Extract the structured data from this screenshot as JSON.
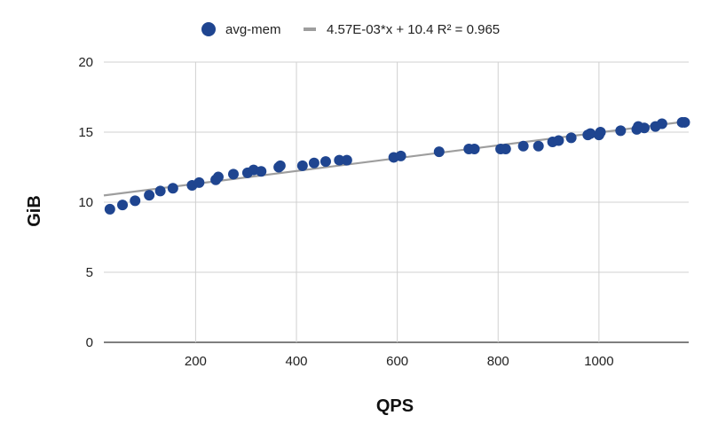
{
  "chart_data": {
    "type": "scatter",
    "title": "",
    "xlabel": "QPS",
    "ylabel": "GiB",
    "xlim": [
      18,
      1178
    ],
    "ylim": [
      0,
      20
    ],
    "x_ticks": [
      200,
      400,
      600,
      800,
      1000
    ],
    "y_ticks": [
      0,
      5,
      10,
      15,
      20
    ],
    "grid": true,
    "legend_position": "top",
    "series": [
      {
        "name": "avg-mem",
        "color": "#1f4590",
        "points": [
          [
            30,
            9.5
          ],
          [
            55,
            9.8
          ],
          [
            80,
            10.1
          ],
          [
            108,
            10.5
          ],
          [
            130,
            10.8
          ],
          [
            155,
            11.0
          ],
          [
            193,
            11.2
          ],
          [
            207,
            11.4
          ],
          [
            240,
            11.6
          ],
          [
            245,
            11.8
          ],
          [
            275,
            12.0
          ],
          [
            303,
            12.1
          ],
          [
            315,
            12.3
          ],
          [
            330,
            12.2
          ],
          [
            365,
            12.5
          ],
          [
            368,
            12.6
          ],
          [
            412,
            12.6
          ],
          [
            435,
            12.8
          ],
          [
            458,
            12.9
          ],
          [
            485,
            13.0
          ],
          [
            500,
            13.0
          ],
          [
            593,
            13.2
          ],
          [
            607,
            13.3
          ],
          [
            683,
            13.6
          ],
          [
            742,
            13.8
          ],
          [
            753,
            13.8
          ],
          [
            805,
            13.8
          ],
          [
            815,
            13.8
          ],
          [
            850,
            14.0
          ],
          [
            880,
            14.0
          ],
          [
            908,
            14.3
          ],
          [
            920,
            14.4
          ],
          [
            945,
            14.6
          ],
          [
            978,
            14.8
          ],
          [
            983,
            14.9
          ],
          [
            1000,
            14.8
          ],
          [
            1003,
            15.0
          ],
          [
            1043,
            15.1
          ],
          [
            1075,
            15.2
          ],
          [
            1078,
            15.4
          ],
          [
            1090,
            15.3
          ],
          [
            1112,
            15.4
          ],
          [
            1125,
            15.6
          ],
          [
            1165,
            15.7
          ],
          [
            1170,
            15.7
          ]
        ]
      }
    ],
    "trendline": {
      "label": "4.57E-03*x + 10.4 R² = 0.965",
      "slope": 0.00457,
      "intercept": 10.4,
      "color": "#9e9e9e"
    }
  }
}
